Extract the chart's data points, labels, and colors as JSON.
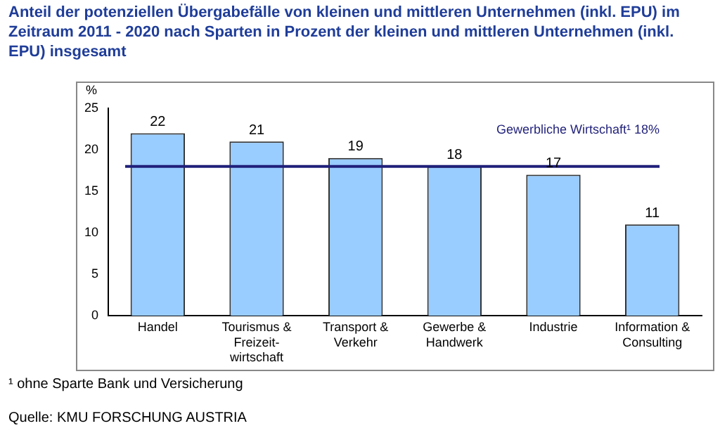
{
  "chart_data": {
    "type": "bar",
    "title": "Anteil der potenziellen Übergabefälle von kleinen und mittleren Unternehmen (inkl. EPU) im Zeitraum 2011 - 2020 nach Sparten in Prozent der kleinen und mittleren Unternehmen (inkl. EPU) insgesamt",
    "ylabel": "%",
    "categories": [
      "Handel",
      "Tourismus &\nFreizeit-\nwirtschaft",
      "Transport &\nVerkehr",
      "Gewerbe &\nHandwerk",
      "Industrie",
      "Information &\nConsulting"
    ],
    "values": [
      22,
      21,
      19,
      18,
      17,
      11
    ],
    "color": "#99ccff",
    "data_labels": true,
    "ylim": [
      0,
      25
    ],
    "yticks": [
      0,
      5,
      10,
      15,
      20,
      25
    ],
    "grid": false,
    "legend": false,
    "ref_lines": [
      {
        "axis": "y",
        "value": 18,
        "label": "Gewerbliche Wirtschaft¹ 18%",
        "color": "#1f1f7a"
      }
    ],
    "annotations": [
      "¹ ohne Sparte Bank und Versicherung",
      "Quelle: KMU FORSCHUNG AUSTRIA"
    ]
  }
}
